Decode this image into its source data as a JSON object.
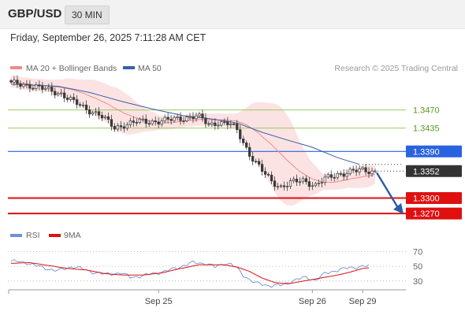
{
  "header": {
    "pair": "GBP/USD",
    "timeframe": "30 MIN",
    "timestamp": "Friday, September 26, 2025 7:11:28 AM CET"
  },
  "colors": {
    "ma20": "#f08a8a",
    "bollinger_fill": "#fbdada",
    "ma50": "#3a5fa8",
    "level_green": "#8cc34a",
    "level_blue": "#2a63e0",
    "level_red": "#e01010",
    "last_price_bg": "#333333",
    "arrow": "#2a5ca8",
    "rsi": "#6f8fd8",
    "rsi_ma": "#e01010",
    "candle": "#3a3a3a"
  },
  "chart_data": [
    {
      "type": "candlestick",
      "legend": [
        {
          "name": "MA 20 + Bollinger Bands",
          "color": "#f08a8a"
        },
        {
          "name": "MA 50",
          "color": "#3a5fa8"
        }
      ],
      "credit": "Research © 2025 Trading Central",
      "ylim": [
        1.3252,
        1.3535
      ],
      "x_count": 117,
      "x_ticks": [
        {
          "label": "Sep 25",
          "index": 47
        },
        {
          "label": "Sep 26",
          "index": 96
        },
        {
          "label": "Sep 29",
          "index": 112
        }
      ],
      "levels": [
        {
          "value": 1.347,
          "label": "1.3470",
          "kind": "green"
        },
        {
          "value": 1.3435,
          "label": "1.3435",
          "kind": "green"
        },
        {
          "value": 1.339,
          "label": "1.3390",
          "kind": "blue"
        },
        {
          "value": 1.33,
          "label": "1.3300",
          "kind": "red"
        },
        {
          "value": 1.327,
          "label": "1.3270",
          "kind": "red"
        }
      ],
      "last_price": {
        "value": 1.3352,
        "label": "1.3352"
      },
      "forecast_arrow": {
        "from_value": 1.3352,
        "to_value": 1.3272
      },
      "close_anchors": [
        [
          0,
          1.3521
        ],
        [
          6,
          1.3518
        ],
        [
          12,
          1.3508
        ],
        [
          16,
          1.3502
        ],
        [
          20,
          1.3485
        ],
        [
          24,
          1.3472
        ],
        [
          28,
          1.3462
        ],
        [
          31,
          1.3446
        ],
        [
          33,
          1.3435
        ],
        [
          36,
          1.3442
        ],
        [
          40,
          1.3447
        ],
        [
          45,
          1.3448
        ],
        [
          50,
          1.345
        ],
        [
          55,
          1.3455
        ],
        [
          59,
          1.3458
        ],
        [
          61,
          1.3452
        ],
        [
          63,
          1.3441
        ],
        [
          66,
          1.3447
        ],
        [
          70,
          1.3442
        ],
        [
          72,
          1.343
        ],
        [
          74,
          1.3408
        ],
        [
          76,
          1.3385
        ],
        [
          78,
          1.3368
        ],
        [
          80,
          1.3352
        ],
        [
          83,
          1.3332
        ],
        [
          86,
          1.3322
        ],
        [
          89,
          1.3329
        ],
        [
          93,
          1.3334
        ],
        [
          97,
          1.3325
        ],
        [
          100,
          1.3336
        ],
        [
          104,
          1.3346
        ],
        [
          108,
          1.3351
        ],
        [
          112,
          1.3353
        ],
        [
          116,
          1.3352
        ]
      ],
      "ma50_points": [
        [
          0,
          1.352
        ],
        [
          15,
          1.3516
        ],
        [
          25,
          1.3504
        ],
        [
          35,
          1.3487
        ],
        [
          45,
          1.3472
        ],
        [
          55,
          1.3459
        ],
        [
          65,
          1.3452
        ],
        [
          72,
          1.3445
        ],
        [
          80,
          1.3427
        ],
        [
          88,
          1.3412
        ],
        [
          96,
          1.3398
        ],
        [
          104,
          1.3378
        ],
        [
          111,
          1.3365
        ]
      ]
    },
    {
      "type": "line",
      "legend": [
        {
          "name": "RSI",
          "color": "#6f8fd8"
        },
        {
          "name": "9MA",
          "color": "#e01010"
        }
      ],
      "ylim": [
        18,
        78
      ],
      "y_ticks": [
        70,
        50,
        30
      ],
      "x_count": 117,
      "series": [
        {
          "name": "RSI",
          "anchors": [
            [
              0,
              57
            ],
            [
              5,
              55
            ],
            [
              10,
              48
            ],
            [
              15,
              44
            ],
            [
              20,
              50
            ],
            [
              25,
              43
            ],
            [
              30,
              39
            ],
            [
              35,
              41
            ],
            [
              38,
              35
            ],
            [
              42,
              37
            ],
            [
              45,
              40
            ],
            [
              50,
              44
            ],
            [
              55,
              51
            ],
            [
              58,
              55
            ],
            [
              62,
              54
            ],
            [
              65,
              49
            ],
            [
              68,
              54
            ],
            [
              70,
              53
            ],
            [
              72,
              47
            ],
            [
              74,
              38
            ],
            [
              76,
              32
            ],
            [
              78,
              27
            ],
            [
              82,
              24
            ],
            [
              86,
              24
            ],
            [
              90,
              31
            ],
            [
              94,
              35
            ],
            [
              97,
              31
            ],
            [
              100,
              40
            ],
            [
              104,
              45
            ],
            [
              108,
              48
            ],
            [
              112,
              50
            ],
            [
              114,
              50
            ]
          ]
        },
        {
          "name": "9MA",
          "anchors": [
            [
              0,
              54
            ],
            [
              6,
              55
            ],
            [
              12,
              51
            ],
            [
              18,
              47
            ],
            [
              24,
              45
            ],
            [
              30,
              40
            ],
            [
              36,
              38
            ],
            [
              42,
              38
            ],
            [
              48,
              41
            ],
            [
              54,
              47
            ],
            [
              60,
              52
            ],
            [
              64,
              52
            ],
            [
              68,
              52
            ],
            [
              72,
              49
            ],
            [
              76,
              43
            ],
            [
              80,
              34
            ],
            [
              84,
              28
            ],
            [
              88,
              26
            ],
            [
              92,
              29
            ],
            [
              96,
              32
            ],
            [
              100,
              35
            ],
            [
              104,
              38
            ],
            [
              108,
              42
            ],
            [
              112,
              47
            ],
            [
              114,
              48
            ]
          ]
        }
      ]
    }
  ]
}
